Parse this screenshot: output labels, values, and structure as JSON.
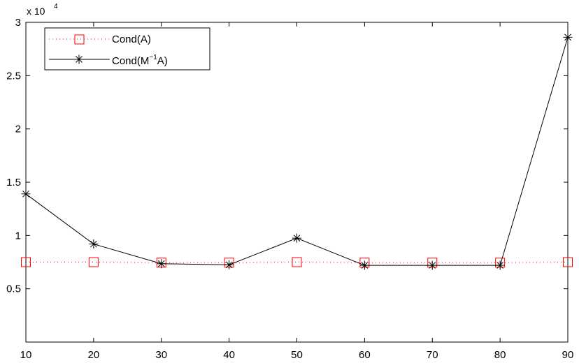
{
  "chart_data": {
    "type": "line",
    "title": "",
    "xlabel": "",
    "ylabel": "",
    "x": [
      10,
      20,
      30,
      40,
      50,
      60,
      70,
      80,
      90
    ],
    "xlim": [
      10,
      90
    ],
    "ylim": [
      0,
      30000
    ],
    "xticks": [
      "10",
      "20",
      "30",
      "40",
      "50",
      "60",
      "70",
      "80",
      "90"
    ],
    "yticks": [
      {
        "value": 5000,
        "label": "0.5"
      },
      {
        "value": 10000,
        "label": "1"
      },
      {
        "value": 15000,
        "label": "1.5"
      },
      {
        "value": 20000,
        "label": "2"
      },
      {
        "value": 25000,
        "label": "2.5"
      },
      {
        "value": 30000,
        "label": "3"
      }
    ],
    "y_multiplier": {
      "base": "x 10",
      "exponent": "4"
    },
    "grid": false,
    "legend_position": "top-left",
    "series": [
      {
        "name": "Cond(A)",
        "legend": {
          "main": "Cond(A)"
        },
        "color": "#ff0000",
        "line_style": "dotted",
        "marker": "square",
        "values": [
          7500,
          7500,
          7450,
          7450,
          7500,
          7450,
          7450,
          7450,
          7500
        ]
      },
      {
        "name": "Cond(M^-1A)",
        "legend": {
          "main": "Cond(M",
          "sup": "−1",
          "tail": "A)"
        },
        "color": "#000000",
        "line_style": "solid",
        "marker": "asterisk",
        "values": [
          13900,
          9200,
          7350,
          7250,
          9750,
          7200,
          7200,
          7200,
          28600
        ]
      }
    ]
  }
}
